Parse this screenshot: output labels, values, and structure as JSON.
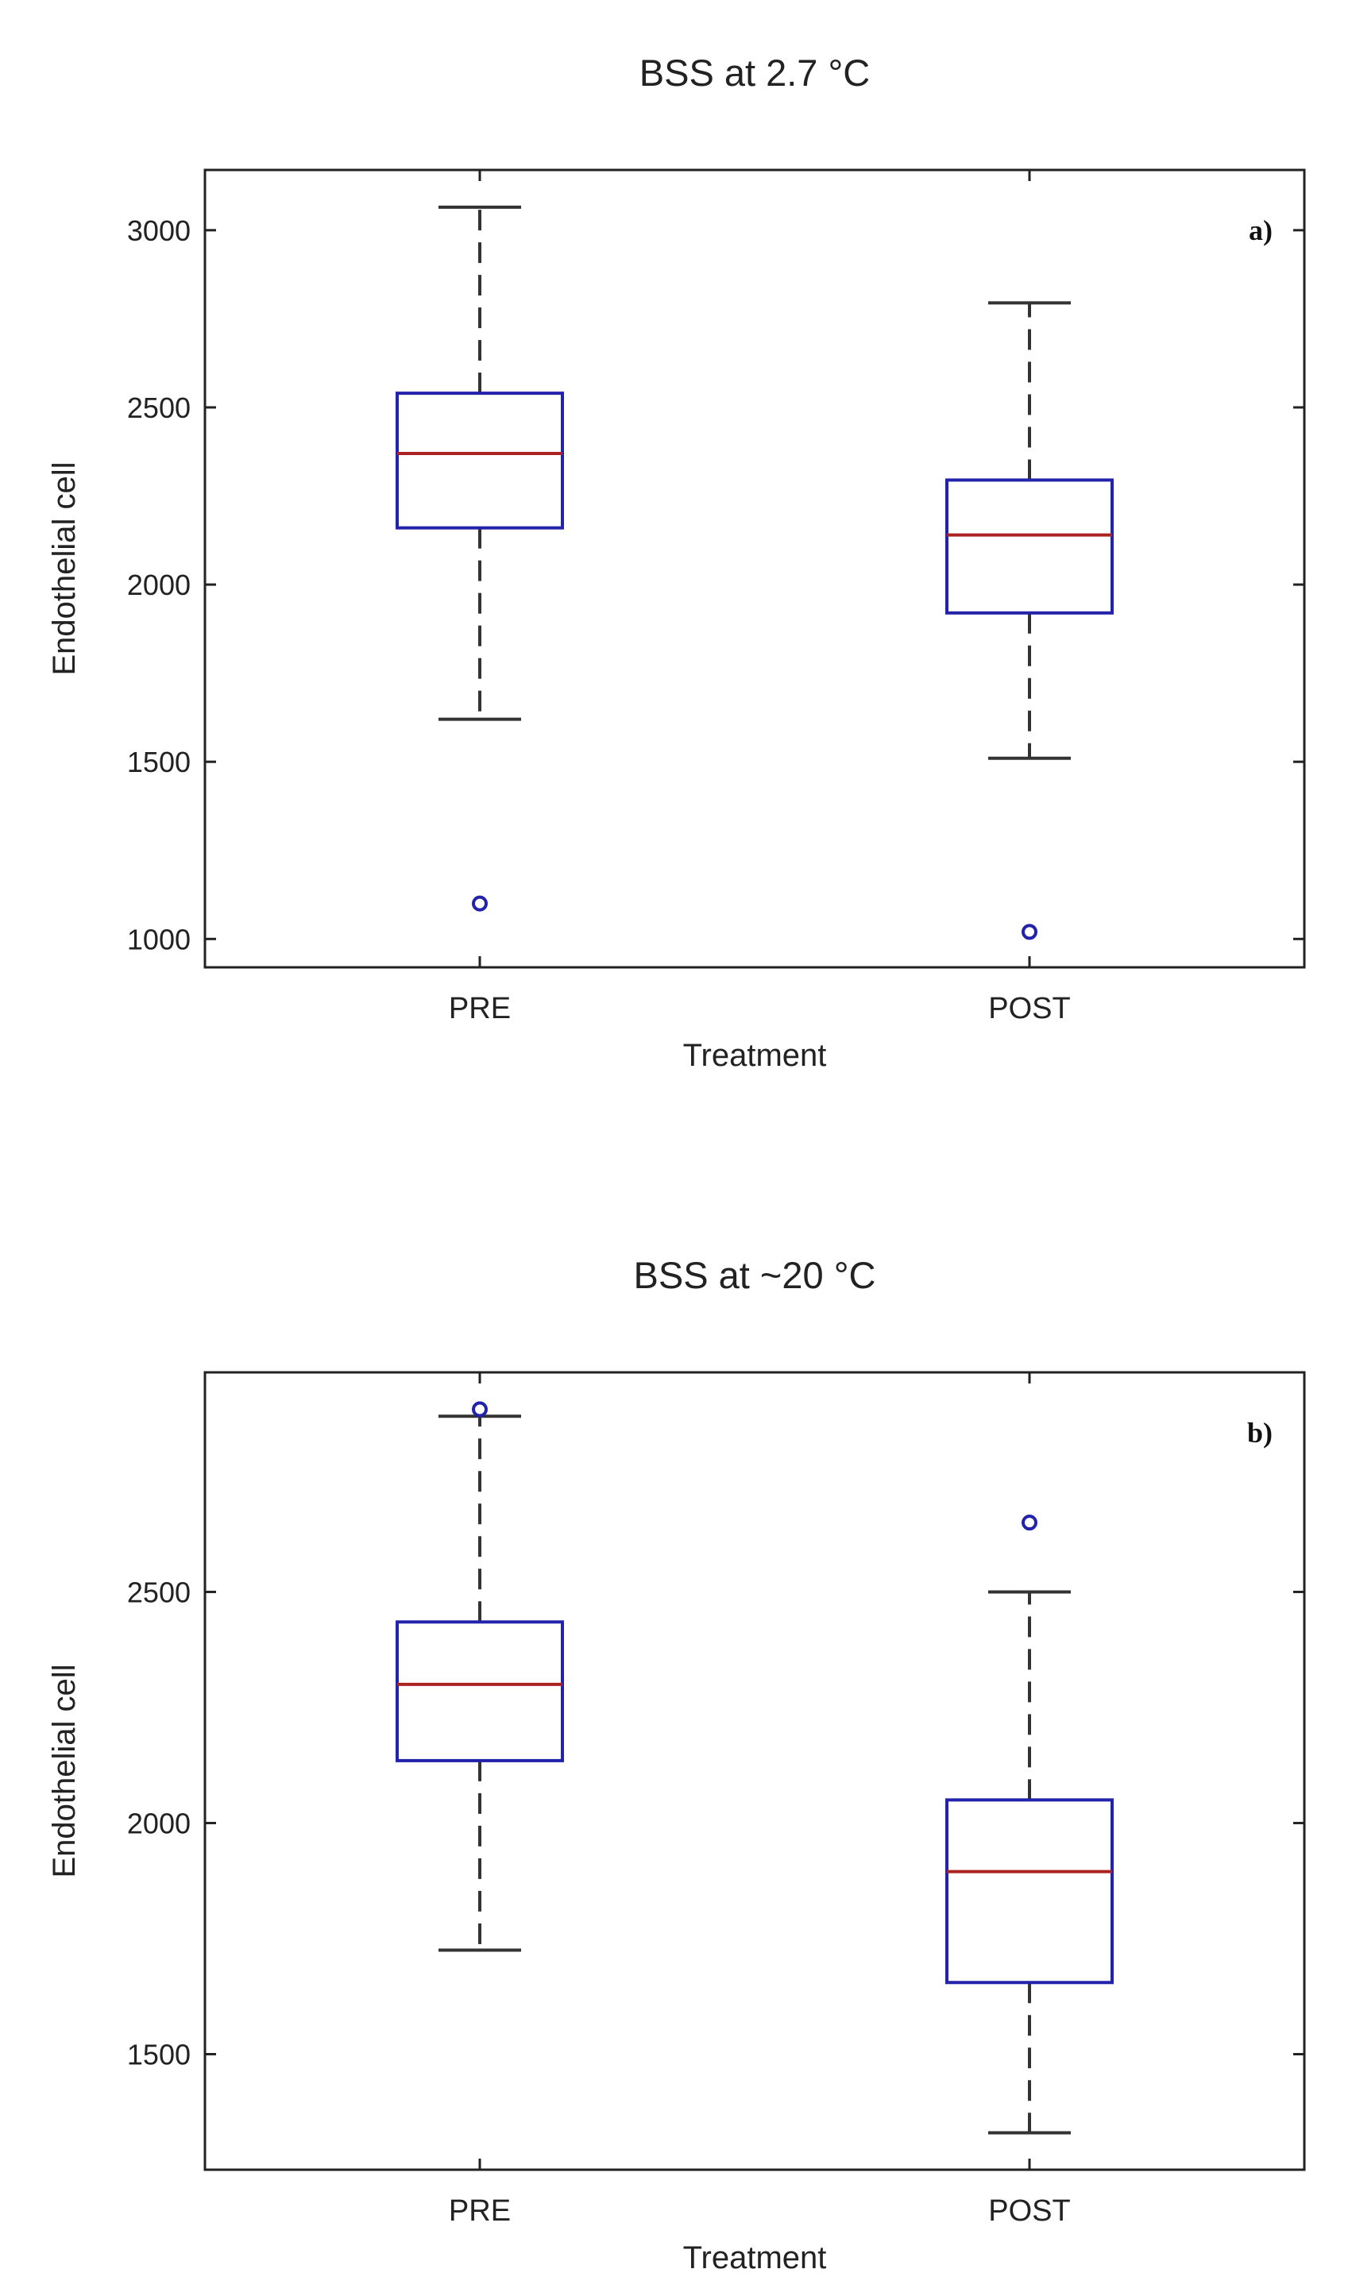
{
  "chart_data": [
    {
      "type": "boxplot",
      "title": "BSS at 2.7 °C",
      "panel_label": "a)",
      "xlabel": "Treatment",
      "ylabel": "Endothelial cell",
      "ylim": [
        920,
        3170
      ],
      "yticks": [
        1000,
        1500,
        2000,
        2500,
        3000
      ],
      "categories": [
        "PRE",
        "POST"
      ],
      "boxes": [
        {
          "category": "PRE",
          "whisker_low": 1620,
          "q1": 2160,
          "median": 2370,
          "q3": 2540,
          "whisker_high": 3065,
          "outliers": [
            1100
          ]
        },
        {
          "category": "POST",
          "whisker_low": 1510,
          "q1": 1920,
          "median": 2140,
          "q3": 2295,
          "whisker_high": 2795,
          "outliers": [
            1020
          ]
        }
      ],
      "colors": {
        "box": "#2222aa",
        "median": "#aa2222",
        "whisker": "#333333",
        "outlier": "#2222aa"
      }
    },
    {
      "type": "boxplot",
      "title": "BSS at ~20 °C",
      "panel_label": "b)",
      "xlabel": "Treatment",
      "ylabel": "Endothelial cell",
      "ylim": [
        1250,
        2975
      ],
      "yticks": [
        1500,
        2000,
        2500
      ],
      "categories": [
        "PRE",
        "POST"
      ],
      "boxes": [
        {
          "category": "PRE",
          "whisker_low": 1725,
          "q1": 2135,
          "median": 2300,
          "q3": 2435,
          "whisker_high": 2880,
          "outliers": [
            2895
          ]
        },
        {
          "category": "POST",
          "whisker_low": 1330,
          "q1": 1655,
          "median": 1895,
          "q3": 2050,
          "whisker_high": 2500,
          "outliers": [
            2650
          ]
        }
      ],
      "colors": {
        "box": "#2222aa",
        "median": "#aa2222",
        "whisker": "#333333",
        "outlier": "#2222aa"
      }
    }
  ]
}
